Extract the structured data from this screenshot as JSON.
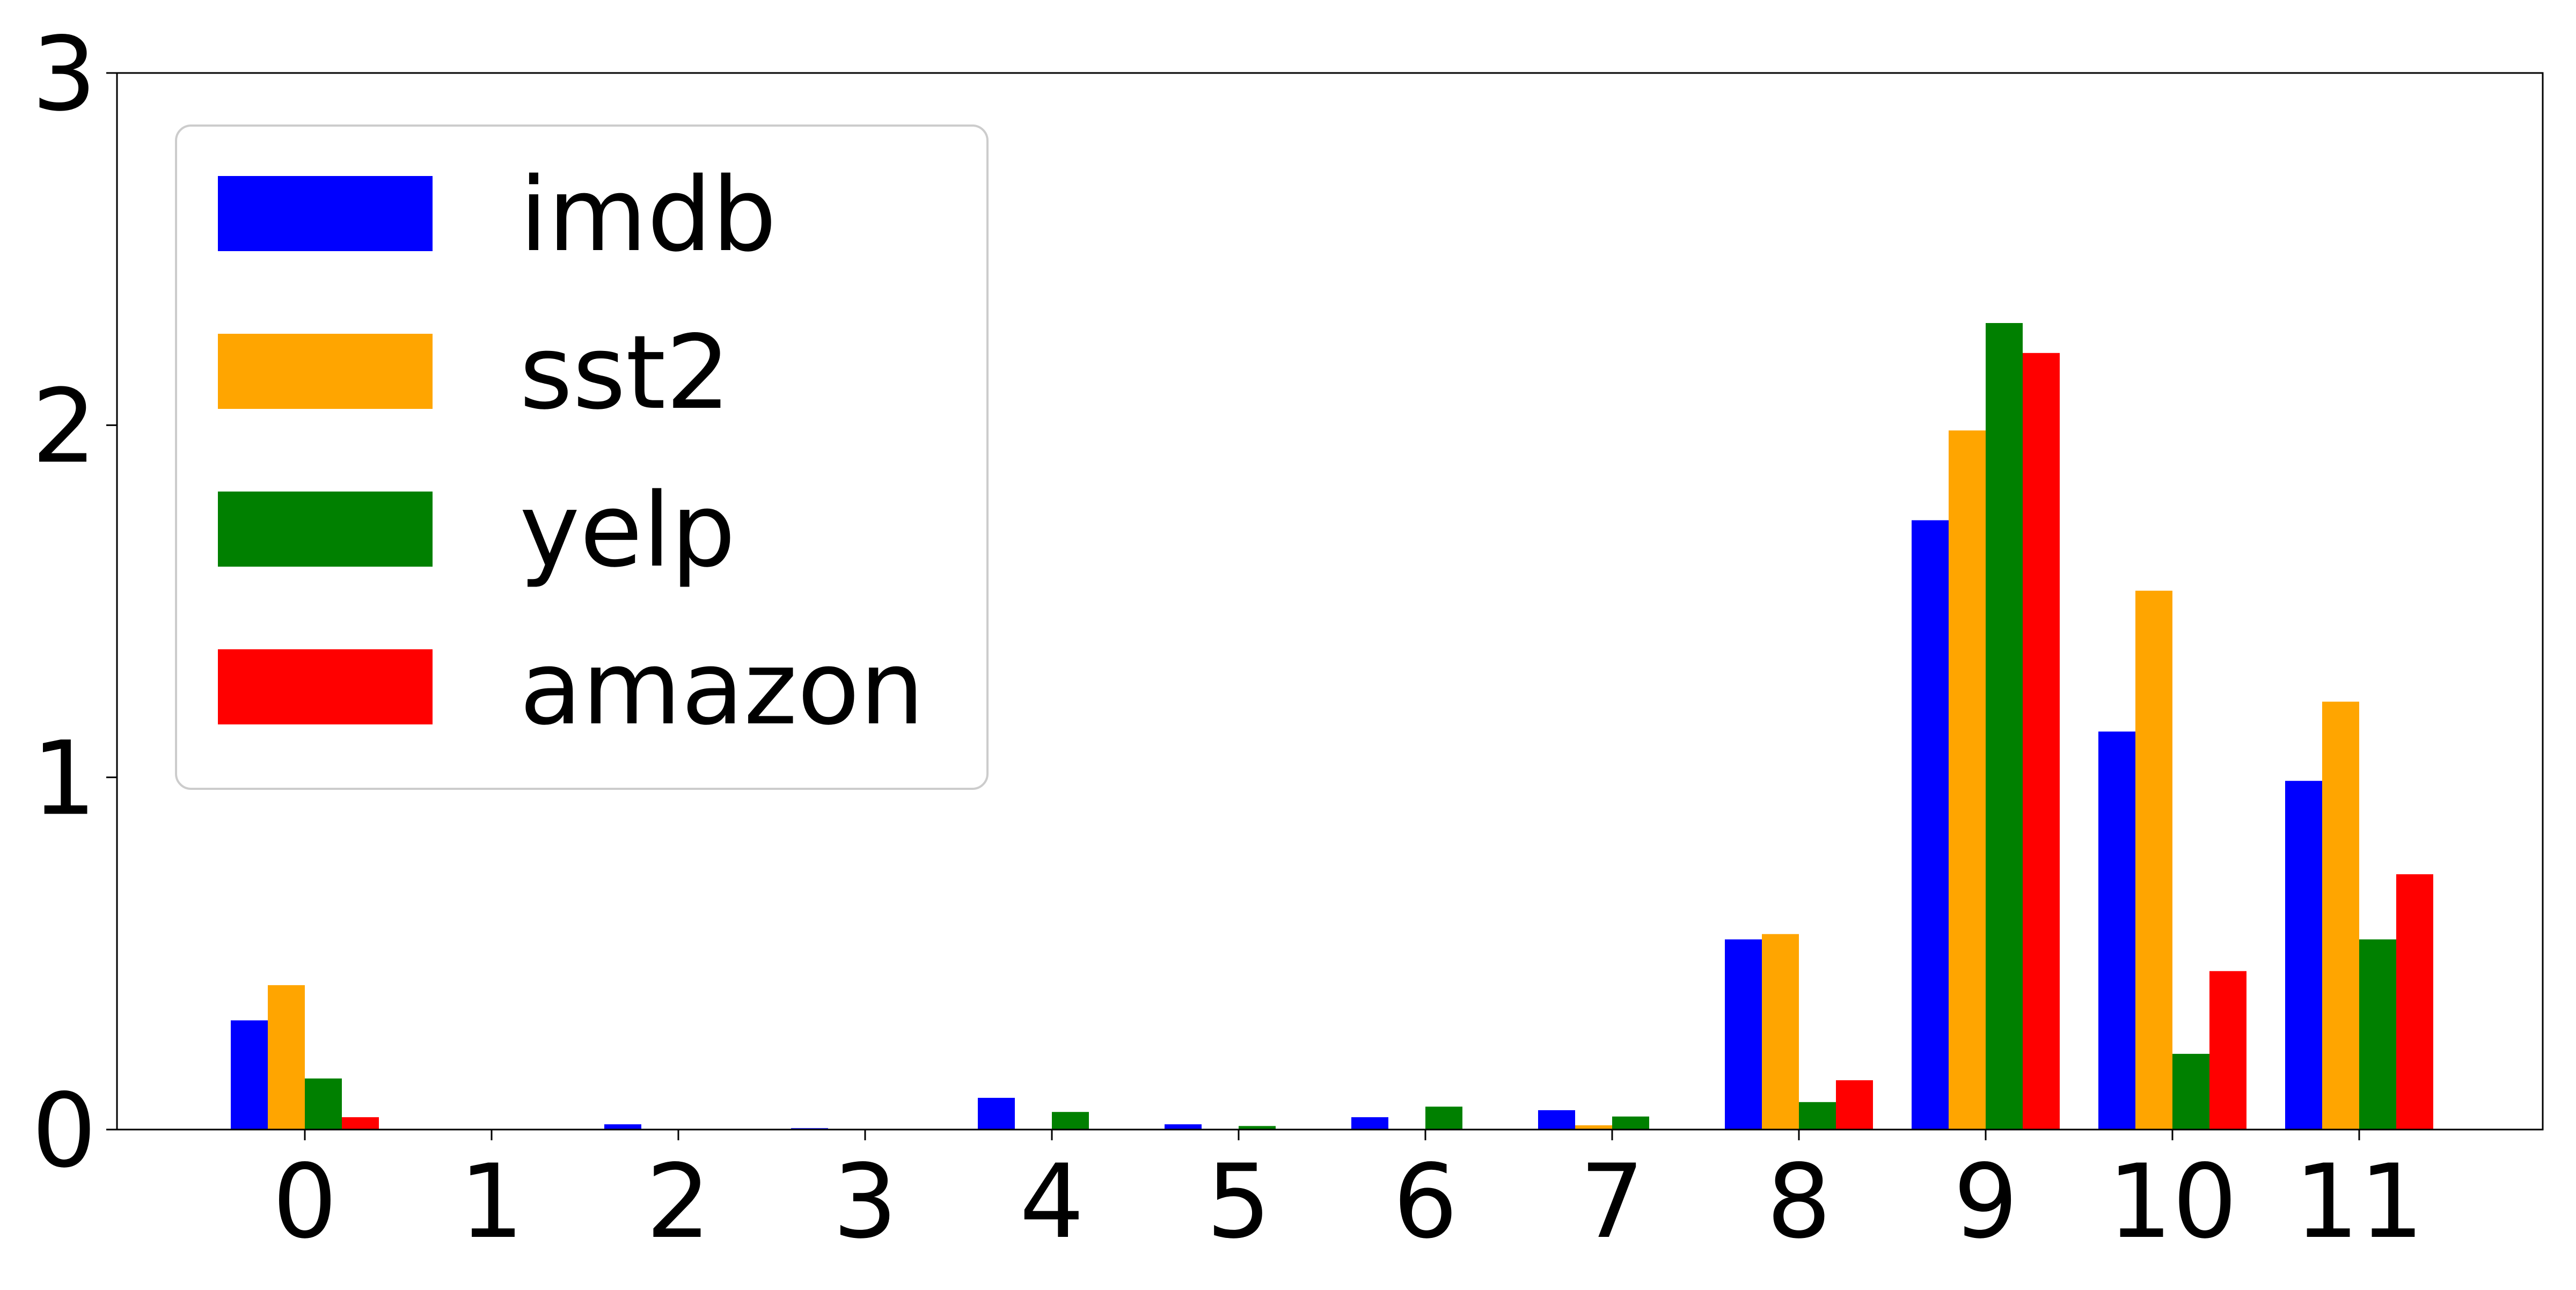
{
  "chart_data": {
    "type": "bar",
    "title": "",
    "xlabel": "",
    "ylabel": "",
    "categories": [
      "0",
      "1",
      "2",
      "3",
      "4",
      "5",
      "6",
      "7",
      "8",
      "9",
      "10",
      "11"
    ],
    "ylim": [
      0,
      3
    ],
    "yticks": [
      "0",
      "1",
      "2",
      "3"
    ],
    "grid": false,
    "legend_position": "top-left",
    "series": [
      {
        "name": "imdb",
        "color": "#0000ff",
        "values": [
          0.31,
          0.0,
          0.015,
          0.004,
          0.09,
          0.015,
          0.035,
          0.055,
          0.54,
          1.73,
          1.13,
          0.99
        ]
      },
      {
        "name": "sst2",
        "color": "#ffa500",
        "values": [
          0.41,
          0.0,
          0.0,
          0.0,
          0.0,
          0.0,
          0.0,
          0.012,
          0.555,
          1.985,
          1.53,
          1.215
        ]
      },
      {
        "name": "yelp",
        "color": "#008000",
        "values": [
          0.145,
          0.0,
          0.0,
          0.0,
          0.05,
          0.01,
          0.065,
          0.037,
          0.078,
          2.29,
          0.215,
          0.54
        ]
      },
      {
        "name": "amazon",
        "color": "#ff0000",
        "values": [
          0.035,
          0.0,
          0.0,
          0.0,
          0.0,
          0.0,
          0.0,
          0.0,
          0.14,
          2.205,
          0.45,
          0.725
        ]
      }
    ]
  }
}
